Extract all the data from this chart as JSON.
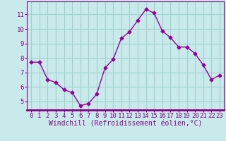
{
  "x": [
    0,
    1,
    2,
    3,
    4,
    5,
    6,
    7,
    8,
    9,
    10,
    11,
    12,
    13,
    14,
    15,
    16,
    17,
    18,
    19,
    20,
    21,
    22,
    23
  ],
  "y": [
    7.7,
    7.7,
    6.5,
    6.3,
    5.8,
    5.6,
    4.7,
    4.85,
    5.5,
    7.3,
    7.9,
    9.35,
    9.8,
    10.6,
    11.35,
    11.1,
    9.85,
    9.4,
    8.75,
    8.75,
    8.3,
    7.5,
    6.5,
    6.8
  ],
  "line_color": "#990099",
  "marker": "D",
  "marker_size": 2.5,
  "bg_color": "#c8eaea",
  "grid_color": "#a0d0d0",
  "xlabel": "Windchill (Refroidissement éolien,°C)",
  "xlabel_color": "#880088",
  "tick_color": "#880088",
  "axis_color": "#880088",
  "ylim": [
    4.4,
    11.9
  ],
  "yticks": [
    5,
    6,
    7,
    8,
    9,
    10,
    11
  ],
  "xticks": [
    0,
    1,
    2,
    3,
    4,
    5,
    6,
    7,
    8,
    9,
    10,
    11,
    12,
    13,
    14,
    15,
    16,
    17,
    18,
    19,
    20,
    21,
    22,
    23
  ],
  "tick_fontsize": 6.5,
  "label_fontsize": 7.0,
  "xlim": [
    -0.5,
    23.5
  ]
}
